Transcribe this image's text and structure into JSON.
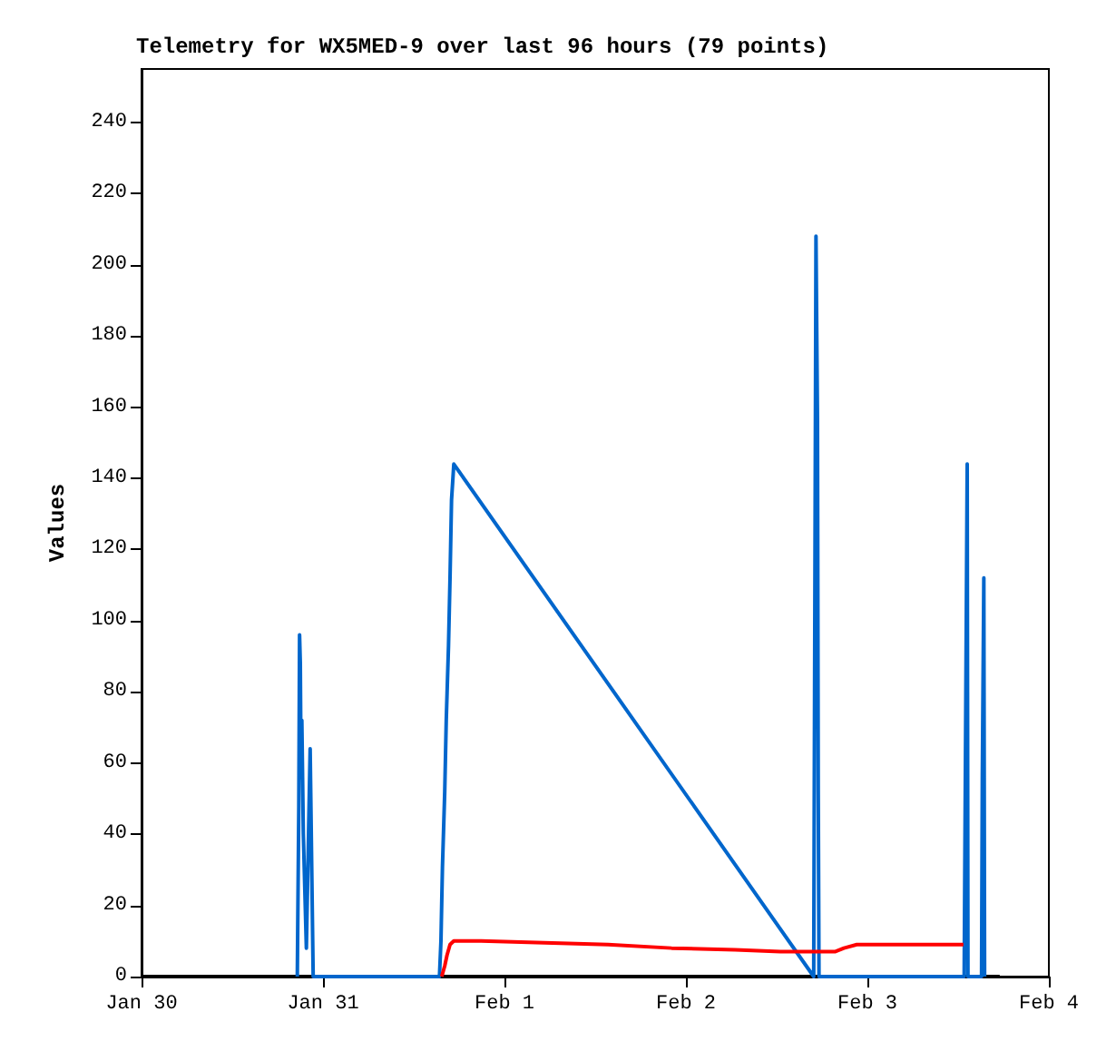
{
  "chart_data": {
    "type": "line",
    "title": "Telemetry for WX5MED-9 over last 96 hours (79 points)",
    "ylabel": "Values",
    "xlim": [
      "--01-30",
      "--02-04"
    ],
    "xticks": [
      {
        "value": "--01-30",
        "label": "Jan 30"
      },
      {
        "value": "--01-31",
        "label": "Jan 31"
      },
      {
        "value": "--02-01",
        "label": "Feb 1"
      },
      {
        "value": "--02-02",
        "label": "Feb 2"
      },
      {
        "value": "--02-03",
        "label": "Feb 3"
      },
      {
        "value": "--02-04",
        "label": "Feb 4"
      }
    ],
    "ylim": [
      0,
      255
    ],
    "yticks": [
      0,
      20,
      40,
      60,
      80,
      100,
      120,
      140,
      160,
      180,
      200,
      220,
      240
    ],
    "grid": false,
    "marker": "none",
    "line_style": "solid",
    "series": [
      {
        "color": "#000000",
        "x": [
          "--01-30T00:00",
          "--02-03T17:30"
        ],
        "values": [
          0,
          0
        ]
      },
      {
        "color": "#0066cc",
        "x": [
          "--01-30T20:36",
          "--01-30T20:48",
          "--01-30T20:54",
          "--01-30T21:00",
          "--01-30T21:06",
          "--01-30T21:12",
          "--01-30T21:24",
          "--01-30T21:36",
          "--01-30T21:48",
          "--01-30T22:18",
          "--01-30T22:36",
          "--01-30T22:42",
          "--01-31T15:24",
          "--01-31T15:36",
          "--01-31T15:48",
          "--01-31T16:06",
          "--01-31T16:18",
          "--01-31T16:36",
          "--01-31T16:48",
          "--01-31T17:00",
          "--01-31T17:18",
          "--02-02T16:54",
          "--02-02T17:12",
          "--02-02T17:24",
          "--02-02T17:30",
          "--02-02T17:36",
          "--02-03T12:48",
          "--02-03T13:00",
          "--02-03T13:12",
          "--02-03T13:18",
          "--02-03T15:06",
          "--02-03T15:12",
          "--02-03T15:24",
          "--02-03T15:30"
        ],
        "values": [
          0,
          48,
          96,
          88,
          56,
          72,
          40,
          24,
          8,
          64,
          16,
          0,
          0,
          10,
          31,
          52,
          72,
          93,
          112,
          134,
          144,
          0,
          208,
          156,
          52,
          0,
          0,
          72,
          144,
          0,
          0,
          56,
          112,
          0
        ]
      },
      {
        "color": "#ff0000",
        "x": [
          "--01-31T15:42",
          "--01-31T16:06",
          "--01-31T16:24",
          "--01-31T16:48",
          "--01-31T17:18",
          "--01-31T20:54",
          "--02-01T05:18",
          "--02-01T13:42",
          "--02-01T22:06",
          "--02-02T06:30",
          "--02-02T12:30",
          "--02-02T19:42",
          "--02-02T20:54",
          "--02-02T22:36",
          "--02-03T12:42"
        ],
        "values": [
          0,
          3,
          6,
          9,
          10,
          10,
          9.5,
          9,
          8,
          7.5,
          7,
          7,
          8,
          9,
          9
        ]
      }
    ]
  }
}
